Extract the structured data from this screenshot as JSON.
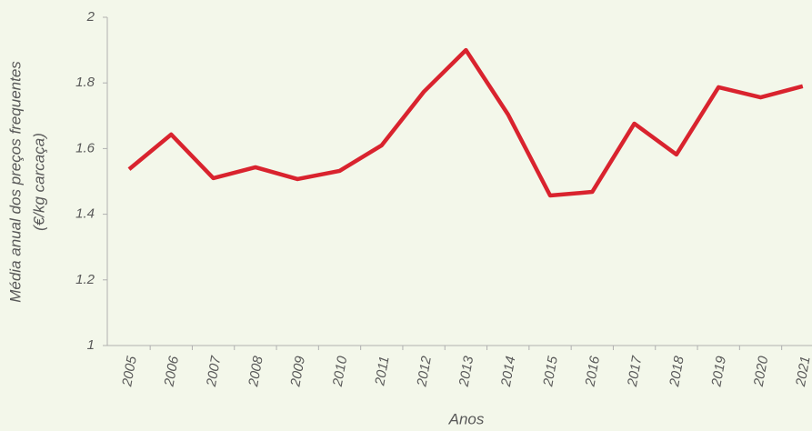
{
  "chart_data": {
    "type": "line",
    "ylabel": [
      "Média anual dos preços frequentes",
      "(€/kg carcaça)"
    ],
    "xlabel": "Anos",
    "categories": [
      "2005",
      "2006",
      "2007",
      "2008",
      "2009",
      "2010",
      "2011",
      "2012",
      "2013",
      "2014",
      "2015",
      "2016",
      "2017",
      "2018",
      "2019",
      "2020",
      "2021"
    ],
    "series": [
      {
        "name": null,
        "color": "#d9232e",
        "values": [
          1.537,
          1.643,
          1.51,
          1.543,
          1.507,
          1.532,
          1.61,
          1.773,
          1.9,
          1.704,
          1.457,
          1.468,
          1.676,
          1.582,
          1.787,
          1.756,
          1.79
        ]
      }
    ],
    "ylim": [
      1,
      2
    ],
    "yticks": [
      1,
      1.2,
      1.4,
      1.6,
      1.8,
      2
    ],
    "grid": false
  }
}
